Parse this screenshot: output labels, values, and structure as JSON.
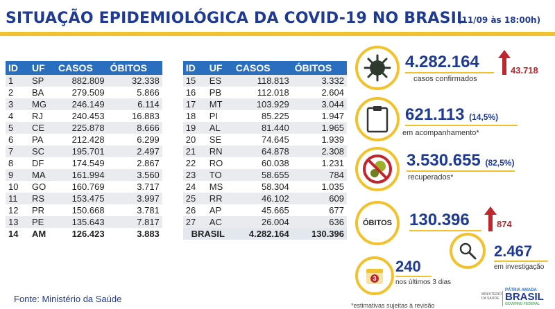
{
  "header": {
    "title": "SITUAÇÃO EPIDEMIOLÓGICA DA COVID-19 NO BRASIL",
    "date": "(11/09 às 18:00h)"
  },
  "table": {
    "columns": [
      "ID",
      "UF",
      "CASOS",
      "ÓBITOS"
    ],
    "left_rows": [
      [
        "1",
        "SP",
        "882.809",
        "32.338"
      ],
      [
        "2",
        "BA",
        "279.509",
        "5.866"
      ],
      [
        "3",
        "MG",
        "246.149",
        "6.114"
      ],
      [
        "4",
        "RJ",
        "240.453",
        "16.883"
      ],
      [
        "5",
        "CE",
        "225.878",
        "8.666"
      ],
      [
        "6",
        "PA",
        "212.428",
        "6.299"
      ],
      [
        "7",
        "SC",
        "195.701",
        "2.497"
      ],
      [
        "8",
        "DF",
        "174.549",
        "2.867"
      ],
      [
        "9",
        "MA",
        "161.994",
        "3.560"
      ],
      [
        "10",
        "GO",
        "160.769",
        "3.717"
      ],
      [
        "11",
        "RS",
        "153.475",
        "3.997"
      ],
      [
        "12",
        "PR",
        "150.668",
        "3.781"
      ],
      [
        "13",
        "PE",
        "135.643",
        "7.817"
      ],
      [
        "14",
        "AM",
        "126.423",
        "3.883"
      ]
    ],
    "right_rows": [
      [
        "15",
        "ES",
        "118.813",
        "3.332"
      ],
      [
        "16",
        "PB",
        "112.018",
        "2.604"
      ],
      [
        "17",
        "MT",
        "103.929",
        "3.044"
      ],
      [
        "18",
        "PI",
        "85.225",
        "1.947"
      ],
      [
        "19",
        "AL",
        "81.440",
        "1.965"
      ],
      [
        "20",
        "SE",
        "74.645",
        "1.939"
      ],
      [
        "21",
        "RN",
        "64.878",
        "2.308"
      ],
      [
        "22",
        "RO",
        "60.038",
        "1.231"
      ],
      [
        "23",
        "TO",
        "58.655",
        "784"
      ],
      [
        "24",
        "MS",
        "58.304",
        "1.035"
      ],
      [
        "25",
        "RR",
        "46.102",
        "609"
      ],
      [
        "26",
        "AP",
        "45.665",
        "677"
      ],
      [
        "27",
        "AC",
        "26.004",
        "636"
      ]
    ],
    "total": {
      "label": "BRASIL",
      "casos": "4.282.164",
      "obitos": "130.396"
    }
  },
  "source": "Fonte: Ministério da Saúde",
  "stats": {
    "confirmed": {
      "value": "4.282.164",
      "label": "casos confirmados",
      "delta": "43.718"
    },
    "monitoring": {
      "value": "621.113",
      "pct": "(14,5%)",
      "label": "em acompanhamento*"
    },
    "recovered": {
      "value": "3.530.655",
      "pct": "(82,5%)",
      "label": "recuperados*"
    },
    "deaths": {
      "circle_label": "ÓBITOS",
      "value": "130.396",
      "delta": "874"
    },
    "investigation": {
      "value": "2.467",
      "label": "em investigação"
    },
    "last3days": {
      "value": "240",
      "label": "nos últimos 3 dias",
      "badge": "3"
    }
  },
  "footnote": "*estimativas sujeitas à revisão",
  "logos": {
    "ministry": "MINISTÉRIO DA SAÚDE",
    "patria": "PÁTRIA AMADA",
    "brasil": "BRASIL",
    "gov": "GOVERNO FEDERAL"
  },
  "colors": {
    "blue": "#1f3a93",
    "yellow": "#f2c12e",
    "red": "#c0262d",
    "table_header": "#2a6fbf"
  }
}
